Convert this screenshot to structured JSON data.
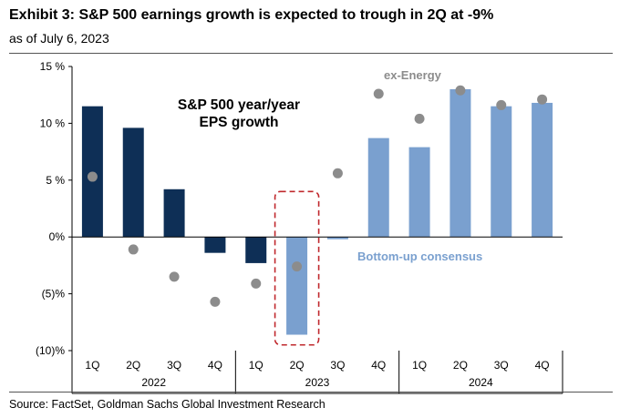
{
  "header": {
    "title": "Exhibit 3: S&P 500 earnings growth is expected to trough in 2Q at -9%",
    "subtitle": "as of July 6, 2023"
  },
  "footer": {
    "source": "Source: FactSet, Goldman Sachs Global Investment Research"
  },
  "colors": {
    "actual": "#0e2f56",
    "consensus": "#7aa0cf",
    "dots": "#8c8c8c",
    "highlight": "#c0282d"
  },
  "chart_data": {
    "type": "bar",
    "title": "S&P 500 year/year EPS growth",
    "categories": [
      "1Q",
      "2Q",
      "3Q",
      "4Q",
      "1Q",
      "2Q",
      "3Q",
      "4Q",
      "1Q",
      "2Q",
      "3Q",
      "4Q"
    ],
    "year_groups": [
      {
        "label": "2022",
        "start": 0,
        "count": 4
      },
      {
        "label": "2023",
        "start": 4,
        "count": 4
      },
      {
        "label": "2024",
        "start": 8,
        "count": 4
      }
    ],
    "series": [
      {
        "name": "S&P 500 year/year EPS growth",
        "type": "bar",
        "values": [
          11.5,
          9.6,
          4.2,
          -1.4,
          -2.3,
          -8.6,
          -0.2,
          8.7,
          7.9,
          13.0,
          11.5,
          11.8
        ],
        "consensus_from_index": 5
      },
      {
        "name": "ex-Energy",
        "type": "scatter",
        "values": [
          5.3,
          -1.1,
          -3.5,
          -5.7,
          -4.1,
          -2.6,
          5.6,
          12.6,
          10.4,
          12.9,
          11.6,
          12.1
        ]
      }
    ],
    "yticks": [
      -10,
      -5,
      0,
      5,
      10,
      15
    ],
    "ytick_labels": [
      "(10)%",
      "(5)%",
      "0%",
      "5 %",
      "10 %",
      "15 %"
    ],
    "ylim": [
      -10,
      15
    ],
    "annotations": {
      "chart_title_line1": "S&P 500 year/year",
      "chart_title_line2": "EPS growth",
      "ex_energy": "ex-Energy",
      "consensus": "Bottom-up consensus"
    },
    "highlight_index": 5
  }
}
